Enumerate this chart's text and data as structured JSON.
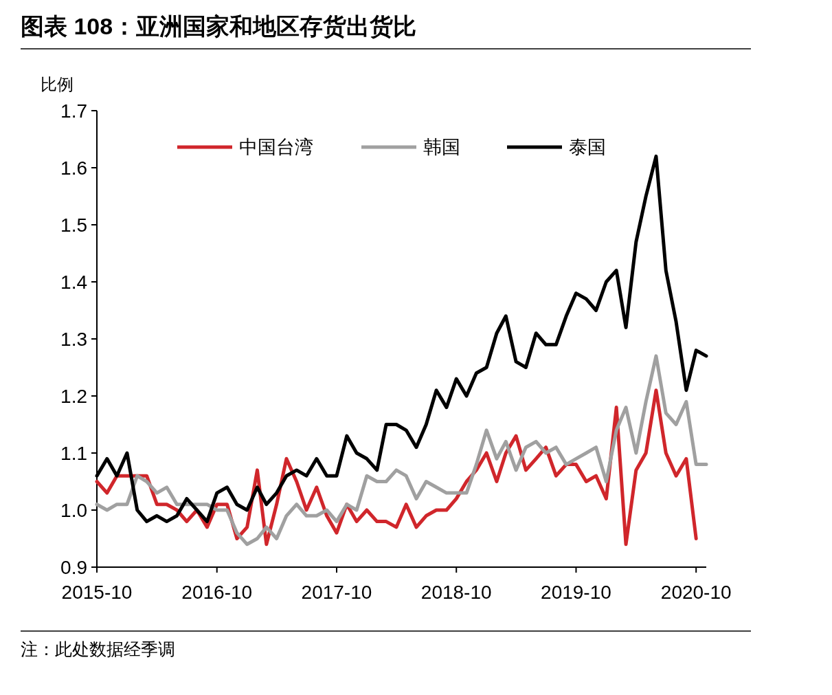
{
  "chart_data": {
    "type": "line",
    "title": "图表 108：亚洲国家和地区存货出货比",
    "ylabel": "比例",
    "x": [
      "2015-10",
      "2015-11",
      "2015-12",
      "2016-01",
      "2016-02",
      "2016-03",
      "2016-04",
      "2016-05",
      "2016-06",
      "2016-07",
      "2016-08",
      "2016-09",
      "2016-10",
      "2016-11",
      "2016-12",
      "2017-01",
      "2017-02",
      "2017-03",
      "2017-04",
      "2017-05",
      "2017-06",
      "2017-07",
      "2017-08",
      "2017-09",
      "2017-10",
      "2017-11",
      "2017-12",
      "2018-01",
      "2018-02",
      "2018-03",
      "2018-04",
      "2018-05",
      "2018-06",
      "2018-07",
      "2018-08",
      "2018-09",
      "2018-10",
      "2018-11",
      "2018-12",
      "2019-01",
      "2019-02",
      "2019-03",
      "2019-04",
      "2019-05",
      "2019-06",
      "2019-07",
      "2019-08",
      "2019-09",
      "2019-10",
      "2019-11",
      "2019-12",
      "2020-01",
      "2020-02",
      "2020-03",
      "2020-04",
      "2020-05",
      "2020-06",
      "2020-07",
      "2020-08",
      "2020-09",
      "2020-10",
      "2020-11"
    ],
    "series": [
      {
        "name": "中国台湾",
        "color": "#d0262b",
        "values": [
          1.05,
          1.03,
          1.06,
          1.06,
          1.06,
          1.06,
          1.01,
          1.01,
          1.0,
          0.98,
          1.0,
          0.97,
          1.01,
          1.01,
          0.95,
          0.97,
          1.07,
          0.94,
          1.01,
          1.09,
          1.05,
          1.0,
          1.04,
          0.99,
          0.96,
          1.01,
          0.98,
          1.0,
          0.98,
          0.98,
          0.97,
          1.01,
          0.97,
          0.99,
          1.0,
          1.0,
          1.02,
          1.05,
          1.07,
          1.1,
          1.05,
          1.1,
          1.13,
          1.07,
          1.09,
          1.11,
          1.06,
          1.08,
          1.08,
          1.05,
          1.06,
          1.02,
          1.18,
          0.94,
          1.07,
          1.1,
          1.21,
          1.1,
          1.06,
          1.09,
          0.95,
          null
        ]
      },
      {
        "name": "韩国",
        "color": "#a0a0a0",
        "values": [
          1.01,
          1.0,
          1.01,
          1.01,
          1.06,
          1.05,
          1.03,
          1.04,
          1.01,
          1.01,
          1.01,
          1.01,
          1.0,
          1.0,
          0.96,
          0.94,
          0.95,
          0.97,
          0.95,
          0.99,
          1.01,
          0.99,
          0.99,
          1.0,
          0.98,
          1.01,
          1.0,
          1.06,
          1.05,
          1.05,
          1.07,
          1.06,
          1.02,
          1.05,
          1.04,
          1.03,
          1.03,
          1.03,
          1.08,
          1.14,
          1.09,
          1.12,
          1.07,
          1.11,
          1.12,
          1.1,
          1.11,
          1.08,
          1.09,
          1.1,
          1.11,
          1.05,
          1.14,
          1.18,
          1.1,
          1.19,
          1.27,
          1.17,
          1.15,
          1.19,
          1.08,
          1.08
        ]
      },
      {
        "name": "泰国",
        "color": "#000000",
        "values": [
          1.06,
          1.09,
          1.06,
          1.1,
          1.0,
          0.98,
          0.99,
          0.98,
          0.99,
          1.02,
          1.0,
          0.98,
          1.03,
          1.04,
          1.01,
          1.0,
          1.04,
          1.01,
          1.03,
          1.06,
          1.07,
          1.06,
          1.09,
          1.06,
          1.06,
          1.13,
          1.1,
          1.09,
          1.07,
          1.15,
          1.15,
          1.14,
          1.11,
          1.15,
          1.21,
          1.18,
          1.23,
          1.2,
          1.24,
          1.25,
          1.31,
          1.34,
          1.26,
          1.25,
          1.31,
          1.29,
          1.29,
          1.34,
          1.38,
          1.37,
          1.35,
          1.4,
          1.42,
          1.32,
          1.47,
          1.55,
          1.62,
          1.42,
          1.33,
          1.21,
          1.28,
          1.27
        ]
      }
    ],
    "xlim": [
      "2015-10",
      "2020-11"
    ],
    "xticks": [
      "2015-10",
      "2016-10",
      "2017-10",
      "2018-10",
      "2019-10",
      "2020-10"
    ],
    "ylim": [
      0.9,
      1.7
    ],
    "yticks": [
      0.9,
      {
        "value": 1,
        "label": "1.0"
      },
      1.1,
      1.2,
      1.3,
      1.4,
      1.5,
      1.6,
      1.7
    ],
    "grid": false,
    "legend": "top",
    "marker": "none",
    "line_style": "solid",
    "annotations": [
      "注：此处数据经季调"
    ]
  }
}
